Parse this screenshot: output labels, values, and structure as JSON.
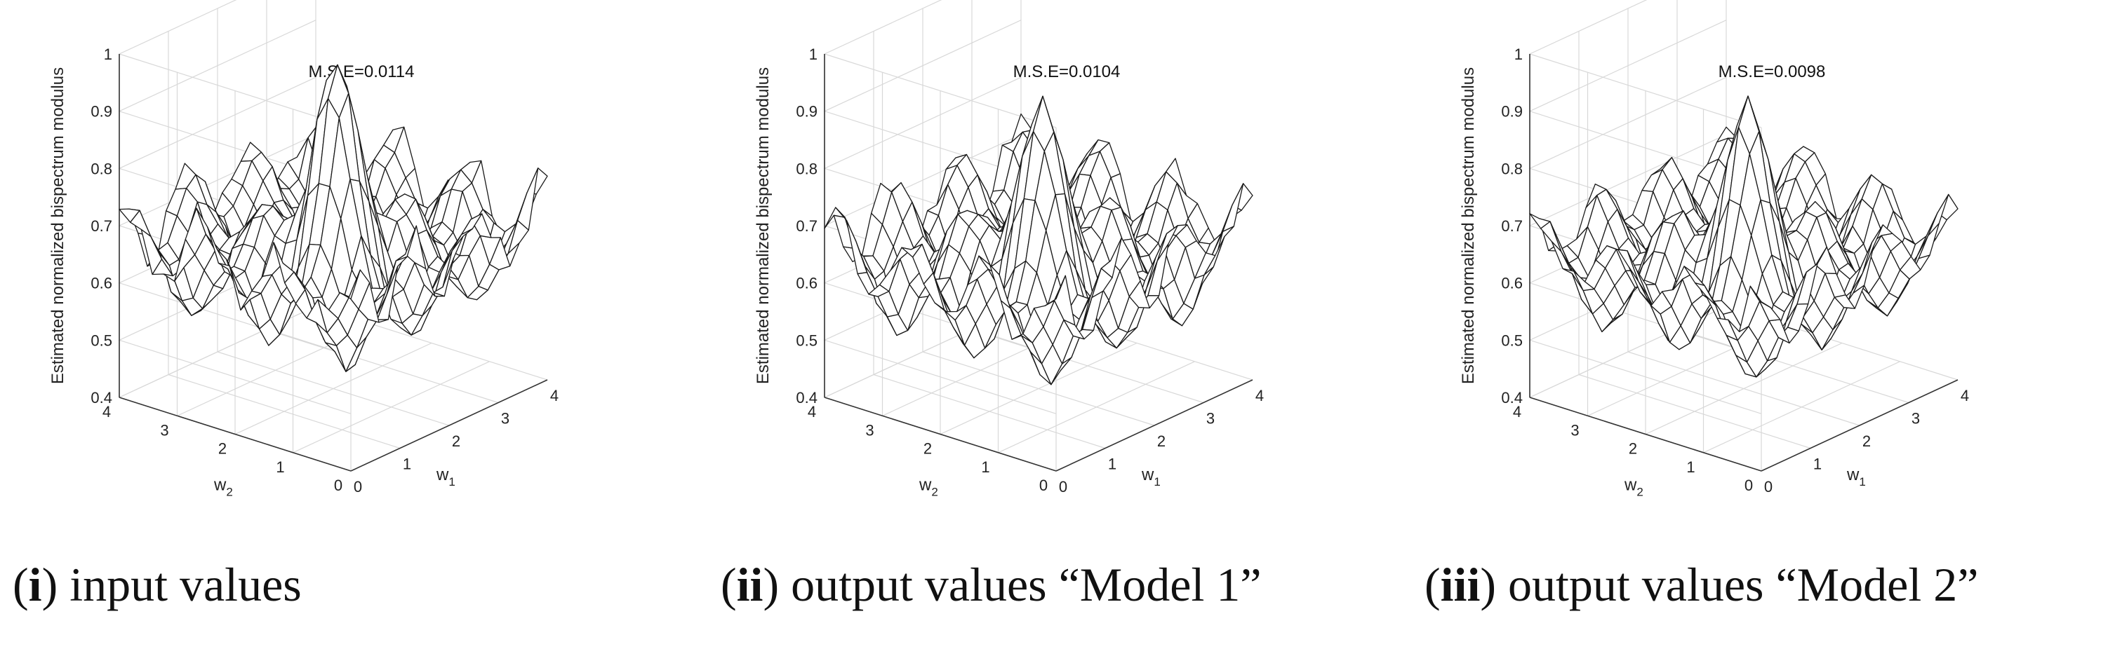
{
  "chart_data": [
    {
      "type": "surface",
      "title": "M.S.E=0.0114",
      "xlabel": "w1",
      "ylabel": "w2",
      "zlabel": "Estimated normalized bispectrum modulus",
      "xlim": [
        0,
        4
      ],
      "ylim": [
        0,
        4
      ],
      "zlim": [
        0.4,
        1
      ],
      "xticks": [
        0,
        1,
        2,
        3,
        4
      ],
      "yticks": [
        0,
        1,
        2,
        3,
        4
      ],
      "zticks": [
        0.4,
        0.5,
        0.6,
        0.7,
        0.8,
        0.9,
        1
      ],
      "grid": true,
      "surface": {
        "base": 0.64,
        "amplitude": 0.1,
        "frequency": 3.1,
        "peak_height": 0.36,
        "peak_x": 0.4,
        "peak_y": 0.4,
        "noise": 0.08,
        "grid_points": 22
      },
      "caption_number": "i",
      "caption_text": "input values"
    },
    {
      "type": "surface",
      "title": "M.S.E=0.0104",
      "xlabel": "w1",
      "ylabel": "w2",
      "zlabel": "Estimated normalized bispectrum modulus",
      "xlim": [
        0,
        4
      ],
      "ylim": [
        0,
        4
      ],
      "zlim": [
        0.4,
        1
      ],
      "xticks": [
        0,
        1,
        2,
        3,
        4
      ],
      "yticks": [
        0,
        1,
        2,
        3,
        4
      ],
      "zticks": [
        0.4,
        0.5,
        0.6,
        0.7,
        0.8,
        0.9,
        1
      ],
      "grid": true,
      "surface": {
        "base": 0.62,
        "amplitude": 0.11,
        "frequency": 3.1,
        "peak_height": 0.3,
        "peak_x": 0.4,
        "peak_y": 0.4,
        "noise": 0.06,
        "grid_points": 22
      },
      "caption_number": "ii",
      "caption_text": "output values “Model 1”"
    },
    {
      "type": "surface",
      "title": "M.S.E=0.0098",
      "xlabel": "w1",
      "ylabel": "w2",
      "zlabel": "Estimated normalized bispectrum modulus",
      "xlim": [
        0,
        4
      ],
      "ylim": [
        0,
        4
      ],
      "zlim": [
        0.4,
        1
      ],
      "xticks": [
        0,
        1,
        2,
        3,
        4
      ],
      "yticks": [
        0,
        1,
        2,
        3,
        4
      ],
      "zticks": [
        0.4,
        0.5,
        0.6,
        0.7,
        0.8,
        0.9,
        1
      ],
      "grid": true,
      "surface": {
        "base": 0.62,
        "amplitude": 0.1,
        "frequency": 3.1,
        "peak_height": 0.3,
        "peak_x": 0.4,
        "peak_y": 0.4,
        "noise": 0.05,
        "grid_points": 22
      },
      "caption_number": "iii",
      "caption_text": "output values “Model 2”"
    }
  ]
}
